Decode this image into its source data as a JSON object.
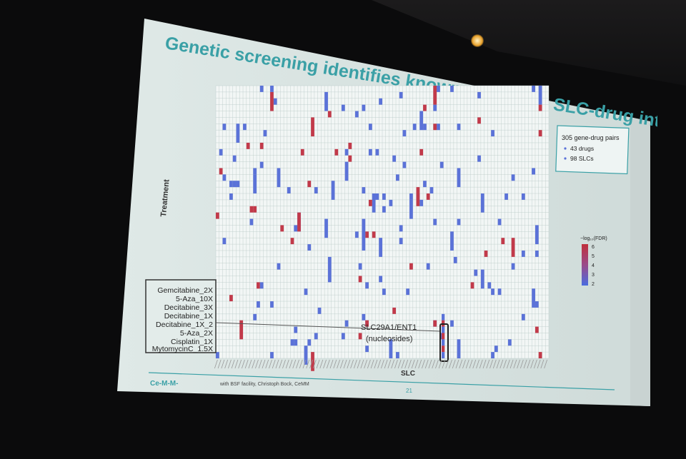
{
  "slide": {
    "title": "Genetic screening identifies known and novel SLC-drug interactions",
    "y_axis_label": "Treatment",
    "x_axis_label": "SLC",
    "stats": [
      "305 gene-drug pairs",
      "43 drugs",
      "98 SLCs"
    ],
    "legend_title": "−log₁₀(FDR)",
    "legend_ticks": [
      "6",
      "5",
      "4",
      "3",
      "2"
    ],
    "highlighted_treatments": [
      "Gemcitabine_2X",
      "5-Aza_10X",
      "Decitabine_3X",
      "Decitabine_1X",
      "Decitabine_1X_2",
      "5-Aza_2X",
      "Cisplatin_1X",
      "MytomycinC_1.5X"
    ],
    "callout_line1": "SLC29A1/ENT1",
    "callout_line2": "(nucleosides)",
    "footer_logo": "Ce-M-M-",
    "footer_credit": "with BSF facility, Christoph Bock, CeMM",
    "page_number": "21"
  },
  "colors": {
    "slide_bg": "#e6efed",
    "title": "#3aa0a6",
    "grid_line": "#b9c9c6",
    "cell_blue": "#5b72d8",
    "cell_red": "#c23a4a",
    "footer_line": "#3aa0a6"
  },
  "scene": {
    "lamp": "ceiling-spotlight-icon"
  }
}
